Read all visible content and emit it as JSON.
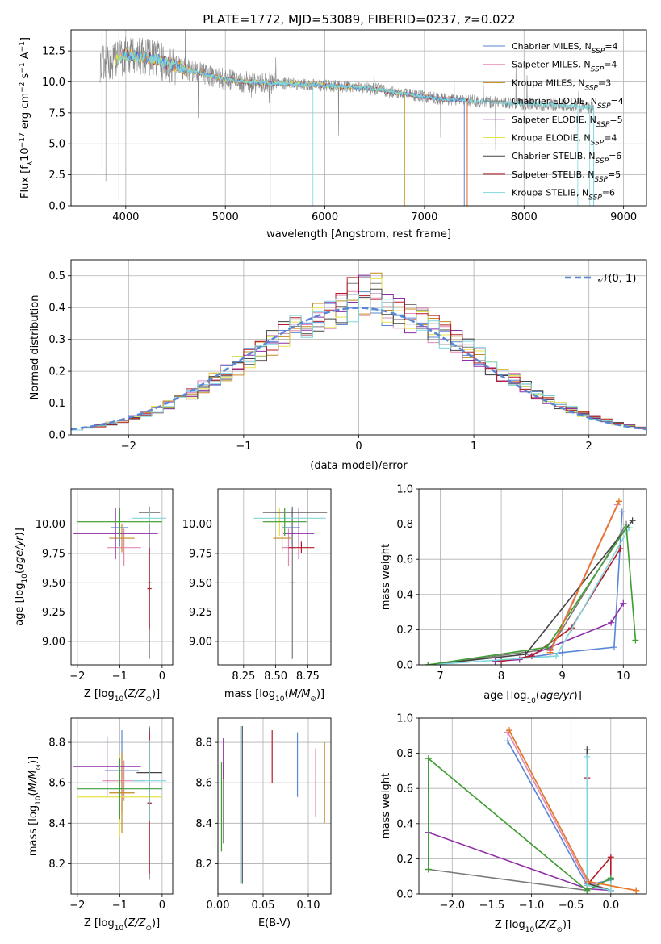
{
  "figure_title": "PLATE=1772, MJD=53089, FIBERID=0237, z=0.022",
  "colors": {
    "chabrier_miles": "#5b86d6",
    "salpeter_miles": "#e289b4",
    "kroupa_miles": "#c38a1e",
    "chabrier_elodie": "#7a7a7a",
    "salpeter_elodie": "#8e2fa8",
    "kroupa_elodie": "#e4e34a",
    "chabrier_stelib": "#444444",
    "salpeter_stelib": "#b51a26",
    "kroupa_stelib": "#7fd6dc",
    "normal": "#5b86d6",
    "green": "#3e9d3e",
    "orange": "#e8762c"
  },
  "chart_data": [
    {
      "id": "spectrum",
      "type": "line",
      "xlabel": "wavelength [Angstrom, rest frame]",
      "ylabel": "Flux [f",
      "xlim": [
        3450,
        9230
      ],
      "ylim": [
        0,
        14.2
      ],
      "xticks": [
        4000,
        5000,
        6000,
        7000,
        8000,
        9000
      ],
      "yticks": [
        0.0,
        2.5,
        5.0,
        7.5,
        10.0,
        12.5
      ],
      "ytick_labels": [
        "0.0",
        "2.5",
        "5.0",
        "7.5",
        "10.0",
        "12.5"
      ],
      "legend_position": "top-right",
      "legend": [
        {
          "name": "Chabrier MILES, N",
          "n": "=4",
          "color": "chabrier_miles"
        },
        {
          "name": "Salpeter MILES, N",
          "n": "=4",
          "color": "salpeter_miles"
        },
        {
          "name": "Kroupa MILES, N",
          "n": "=3",
          "color": "kroupa_miles"
        },
        {
          "name": "Chabrier ELODIE, N",
          "n": "=4",
          "color": "chabrier_elodie"
        },
        {
          "name": "Salpeter ELODIE, N",
          "n": "=5",
          "color": "salpeter_elodie"
        },
        {
          "name": "Kroupa ELODIE, N",
          "n": "=4",
          "color": "kroupa_elodie"
        },
        {
          "name": "Chabrier STELIB, N",
          "n": "=6",
          "color": "chabrier_stelib"
        },
        {
          "name": "Salpeter STELIB, N",
          "n": "=5",
          "color": "salpeter_stelib"
        },
        {
          "name": "Kroupa STELIB, N",
          "n": "=6",
          "color": "kroupa_stelib"
        }
      ],
      "continuum": [
        [
          3740,
          11.4
        ],
        [
          3900,
          11.8
        ],
        [
          4000,
          12.2
        ],
        [
          4200,
          12.0
        ],
        [
          4400,
          11.6
        ],
        [
          4600,
          11.0
        ],
        [
          4800,
          10.6
        ],
        [
          5000,
          10.2
        ],
        [
          5200,
          10.0
        ],
        [
          5500,
          9.9
        ],
        [
          5800,
          9.8
        ],
        [
          6000,
          9.7
        ],
        [
          6300,
          9.6
        ],
        [
          6600,
          9.3
        ],
        [
          6900,
          8.9
        ],
        [
          7200,
          8.6
        ],
        [
          7430,
          8.5
        ],
        [
          7800,
          8.3
        ],
        [
          8100,
          8.2
        ],
        [
          8400,
          8.1
        ],
        [
          8700,
          7.9
        ]
      ],
      "data_range": [
        3740,
        8700
      ],
      "model_range": [
        3950,
        7430
      ]
    },
    {
      "id": "residuals",
      "type": "line",
      "xlabel": "(data-model)/error",
      "ylabel": "Normed distribution",
      "xlim": [
        -2.5,
        2.5
      ],
      "ylim": [
        0,
        0.55
      ],
      "xticks": [
        -2,
        -1,
        0,
        1,
        2
      ],
      "xtick_labels": [
        "−2",
        "−1",
        "0",
        "1",
        "2"
      ],
      "yticks": [
        0.0,
        0.1,
        0.2,
        0.3,
        0.4,
        0.5
      ],
      "ytick_labels": [
        "0.0",
        "0.1",
        "0.2",
        "0.3",
        "0.4",
        "0.5"
      ],
      "legend": "𝒩(0, 1)",
      "legend_position": "top-right",
      "bin_width": 0.1
    },
    {
      "id": "age_vs_Z",
      "type": "scatter",
      "xlabel": "Z [log",
      "ylabel": "age  [log",
      "xlim": [
        -2.15,
        0.25
      ],
      "ylim": [
        8.8,
        10.3
      ],
      "xticks": [
        -2,
        -1,
        0
      ],
      "xtick_labels": [
        "−2",
        "−1",
        "0"
      ],
      "yticks": [
        9.0,
        9.25,
        9.5,
        9.75,
        10.0
      ],
      "ytick_labels": [
        "9.00",
        "9.25",
        "9.50",
        "9.75",
        "10.00"
      ],
      "points": [
        {
          "color": "chabrier_miles",
          "x": -1.0,
          "xe": 0.2,
          "y": 9.97,
          "ye": 0.16
        },
        {
          "color": "salpeter_miles",
          "x": -0.9,
          "xe": 0.4,
          "y": 9.8,
          "ye": 0.16
        },
        {
          "color": "kroupa_miles",
          "x": -0.95,
          "xe": 0.3,
          "y": 9.88,
          "ye": 0.12
        },
        {
          "color": "chabrier_elodie",
          "x": -0.3,
          "xe": 0.05,
          "y": 9.5,
          "ye": 0.65
        },
        {
          "color": "salpeter_elodie",
          "x": -1.1,
          "xe": 1.0,
          "y": 9.92,
          "ye": 0.22
        },
        {
          "color": "kroupa_elodie",
          "x": -1.0,
          "xe": 1.0,
          "y": 10.02,
          "ye": 0.12
        },
        {
          "color": "chabrier_stelib",
          "x": -0.3,
          "xe": 0.25,
          "y": 10.1,
          "ye": 0.0
        },
        {
          "color": "salpeter_stelib",
          "x": -0.3,
          "xe": 0.05,
          "y": 9.45,
          "ye": 0.35
        },
        {
          "color": "kroupa_stelib",
          "x": -0.3,
          "xe": 0.4,
          "y": 10.05,
          "ye": 0.05
        },
        {
          "color": "green",
          "x": -1.0,
          "xe": 1.0,
          "y": 10.02,
          "ye": 0.12
        }
      ]
    },
    {
      "id": "age_vs_mass",
      "type": "scatter",
      "xlabel": "mass [log",
      "ylabel": "",
      "xlim": [
        8.05,
        8.93
      ],
      "ylim": [
        8.8,
        10.3
      ],
      "xticks": [
        8.25,
        8.5,
        8.75
      ],
      "xtick_labels": [
        "8.25",
        "8.50",
        "8.75"
      ],
      "yticks": [
        9.0,
        9.25,
        9.5,
        9.75,
        10.0
      ],
      "ytick_labels": [
        "9.00",
        "9.25",
        "9.50",
        "9.75",
        "10.00"
      ],
      "points": [
        {
          "color": "chabrier_miles",
          "x": 8.62,
          "xe": 0.07,
          "y": 9.97,
          "ye": 0.16
        },
        {
          "color": "salpeter_miles",
          "x": 8.6,
          "xe": 0.05,
          "y": 9.8,
          "ye": 0.16
        },
        {
          "color": "kroupa_miles",
          "x": 8.55,
          "xe": 0.07,
          "y": 9.88,
          "ye": 0.12
        },
        {
          "color": "chabrier_elodie",
          "x": 8.63,
          "xe": 0.02,
          "y": 9.5,
          "ye": 0.65
        },
        {
          "color": "salpeter_elodie",
          "x": 8.68,
          "xe": 0.12,
          "y": 9.92,
          "ye": 0.22
        },
        {
          "color": "kroupa_elodie",
          "x": 8.53,
          "xe": 0.12,
          "y": 10.02,
          "ye": 0.12
        },
        {
          "color": "chabrier_stelib",
          "x": 8.65,
          "xe": 0.25,
          "y": 10.1,
          "ye": 0.0
        },
        {
          "color": "salpeter_stelib",
          "x": 8.7,
          "xe": 0.1,
          "y": 9.8,
          "ye": 0.05
        },
        {
          "color": "kroupa_stelib",
          "x": 8.61,
          "xe": 0.28,
          "y": 10.05,
          "ye": 0.0
        },
        {
          "color": "green",
          "x": 8.57,
          "xe": 0.17,
          "y": 10.02,
          "ye": 0.12
        }
      ]
    },
    {
      "id": "weight_vs_age",
      "type": "line",
      "xlabel": "age  [log",
      "ylabel": "mass weight",
      "xlim": [
        6.65,
        10.38
      ],
      "ylim": [
        0,
        1.0
      ],
      "xticks": [
        7,
        8,
        9,
        10
      ],
      "xtick_labels": [
        "7",
        "8",
        "9",
        "10"
      ],
      "yticks": [
        0,
        0.2,
        0.4,
        0.6,
        0.8,
        1.0
      ],
      "ytick_labels": [
        "0.0",
        "0.2",
        "0.4",
        "0.6",
        "0.8",
        "1.0"
      ],
      "series": [
        {
          "color": "chabrier_miles",
          "pts": [
            [
              8.0,
              0.02
            ],
            [
              9.0,
              0.07
            ],
            [
              9.85,
              0.1
            ],
            [
              9.98,
              0.87
            ]
          ]
        },
        {
          "color": "salpeter_miles",
          "pts": [
            [
              8.8,
              0.08
            ],
            [
              9.9,
              0.91
            ]
          ]
        },
        {
          "color": "kroupa_miles",
          "pts": [
            [
              8.8,
              0.07
            ],
            [
              9.93,
              0.93
            ]
          ]
        },
        {
          "color": "chabrier_elodie",
          "pts": [
            [
              6.8,
              0.0
            ],
            [
              8.8,
              0.09
            ],
            [
              10.05,
              0.8
            ]
          ]
        },
        {
          "color": "salpeter_elodie",
          "pts": [
            [
              7.9,
              0.02
            ],
            [
              8.3,
              0.03
            ],
            [
              9.8,
              0.24
            ],
            [
              10.0,
              0.35
            ]
          ]
        },
        {
          "color": "kroupa_elodie",
          "pts": [
            [
              6.8,
              0.0
            ],
            [
              8.75,
              0.1
            ],
            [
              10.05,
              0.78
            ],
            [
              10.2,
              0.14
            ]
          ]
        },
        {
          "color": "chabrier_stelib",
          "pts": [
            [
              6.8,
              0.0
            ],
            [
              8.4,
              0.06
            ],
            [
              10.15,
              0.82
            ]
          ]
        },
        {
          "color": "salpeter_stelib",
          "pts": [
            [
              8.0,
              0.02
            ],
            [
              8.5,
              0.05
            ],
            [
              9.15,
              0.21
            ],
            [
              9.95,
              0.66
            ]
          ]
        },
        {
          "color": "kroupa_stelib",
          "pts": [
            [
              6.8,
              0.0
            ],
            [
              8.9,
              0.05
            ],
            [
              10.1,
              0.78
            ]
          ]
        },
        {
          "color": "green",
          "pts": [
            [
              6.8,
              0.0
            ],
            [
              8.75,
              0.1
            ],
            [
              10.05,
              0.78
            ],
            [
              10.2,
              0.14
            ]
          ]
        },
        {
          "color": "orange",
          "pts": [
            [
              8.8,
              0.07
            ],
            [
              9.93,
              0.93
            ]
          ]
        }
      ]
    },
    {
      "id": "mass_vs_Z",
      "type": "scatter",
      "xlabel": "Z [log",
      "ylabel": "mass [log",
      "xlim": [
        -2.15,
        0.25
      ],
      "ylim": [
        8.05,
        8.92
      ],
      "xticks": [
        -2,
        -1,
        0
      ],
      "xtick_labels": [
        "−2",
        "−1",
        "0"
      ],
      "yticks": [
        8.2,
        8.4,
        8.6,
        8.8
      ],
      "ytick_labels": [
        "8.2",
        "8.4",
        "8.6",
        "8.8"
      ],
      "points": [
        {
          "color": "chabrier_miles",
          "x": -0.95,
          "xe": 0.4,
          "y": 8.66,
          "ye": 0.2
        },
        {
          "color": "salpeter_miles",
          "x": -0.9,
          "xe": 0.5,
          "y": 8.61,
          "ye": 0.1
        },
        {
          "color": "kroupa_miles",
          "x": -0.95,
          "xe": 0.3,
          "y": 8.55,
          "ye": 0.2
        },
        {
          "color": "chabrier_elodie",
          "x": -0.3,
          "xe": 0.05,
          "y": 8.5,
          "ye": 0.38
        },
        {
          "color": "salpeter_elodie",
          "x": -1.3,
          "xe": 0.8,
          "y": 8.68,
          "ye": 0.15
        },
        {
          "color": "kroupa_elodie",
          "x": -1.0,
          "xe": 1.0,
          "y": 8.53,
          "ye": 0.2
        },
        {
          "color": "chabrier_stelib",
          "x": -0.3,
          "xe": 0.3,
          "y": 8.65,
          "ye": 0.22
        },
        {
          "color": "salpeter_stelib",
          "x": -0.3,
          "xe": 0.05,
          "y": 8.5,
          "ye": 0.35
        },
        {
          "color": "kroupa_stelib",
          "x": -0.3,
          "xe": 0.4,
          "y": 8.61,
          "ye": 0.2
        },
        {
          "color": "green",
          "x": -1.0,
          "xe": 1.0,
          "y": 8.57,
          "ye": 0.15
        }
      ]
    },
    {
      "id": "mass_vs_ebv",
      "type": "scatter",
      "xlabel": "E(B-V)",
      "ylabel": "",
      "xlim": [
        0.0,
        0.125
      ],
      "ylim": [
        8.05,
        8.92
      ],
      "xticks": [
        0.0,
        0.05,
        0.1
      ],
      "xtick_labels": [
        "0.00",
        "0.05",
        "0.10"
      ],
      "yticks": [
        8.2,
        8.4,
        8.6,
        8.8
      ],
      "ytick_labels": [
        "8.2",
        "8.4",
        "8.6",
        "8.8"
      ],
      "points": [
        {
          "color": "chabrier_miles",
          "x": 0.088,
          "y": 8.69,
          "ye": 0.16
        },
        {
          "color": "salpeter_miles",
          "x": 0.108,
          "y": 8.6,
          "ye": 0.17
        },
        {
          "color": "kroupa_miles",
          "x": 0.118,
          "y": 8.6,
          "ye": 0.2
        },
        {
          "color": "chabrier_elodie",
          "x": 0.006,
          "y": 8.5,
          "ye": 0.2
        },
        {
          "color": "salpeter_elodie",
          "x": 0.006,
          "y": 8.72,
          "ye": 0.1
        },
        {
          "color": "kroupa_elodie",
          "x": 0.004,
          "y": 8.48,
          "ye": 0.22
        },
        {
          "color": "chabrier_stelib",
          "x": 0.027,
          "y": 8.49,
          "ye": 0.39
        },
        {
          "color": "salpeter_stelib",
          "x": 0.06,
          "y": 8.73,
          "ye": 0.13
        },
        {
          "color": "kroupa_stelib",
          "x": 0.025,
          "y": 8.49,
          "ye": 0.39
        },
        {
          "color": "green",
          "x": 0.004,
          "y": 8.48,
          "ye": 0.22
        }
      ]
    },
    {
      "id": "weight_vs_Z",
      "type": "line",
      "xlabel": "Z [log",
      "ylabel": "mass weight",
      "xlim": [
        -2.42,
        0.45
      ],
      "ylim": [
        0,
        1.0
      ],
      "xticks": [
        -2.0,
        -1.5,
        -1.0,
        -0.5,
        0.0
      ],
      "xtick_labels": [
        "−2.0",
        "−1.5",
        "−1.0",
        "−0.5",
        "0.0"
      ],
      "yticks": [
        0,
        0.2,
        0.4,
        0.6,
        0.8,
        1.0
      ],
      "ytick_labels": [
        "0.0",
        "0.2",
        "0.4",
        "0.6",
        "0.8",
        "1.0"
      ],
      "series": [
        {
          "color": "chabrier_miles",
          "pts": [
            [
              -1.3,
              0.87
            ],
            [
              -0.3,
              0.05
            ],
            [
              0.0,
              0.08
            ]
          ]
        },
        {
          "color": "salpeter_miles",
          "pts": [
            [
              -1.3,
              0.92
            ],
            [
              -0.3,
              0.07
            ],
            [
              0.0,
              0.02
            ]
          ]
        },
        {
          "color": "kroupa_miles",
          "pts": [
            [
              -1.28,
              0.93
            ],
            [
              -0.28,
              0.07
            ],
            [
              0.32,
              0.02
            ]
          ]
        },
        {
          "color": "chabrier_elodie",
          "pts": [
            [
              -2.3,
              0.14
            ],
            [
              -0.3,
              0.02
            ],
            [
              0.0,
              0.09
            ]
          ]
        },
        {
          "color": "salpeter_elodie",
          "pts": [
            [
              -2.3,
              0.35
            ],
            [
              -0.3,
              0.03
            ],
            [
              0.0,
              0.02
            ]
          ]
        },
        {
          "color": "kroupa_elodie",
          "pts": [
            [
              -2.3,
              0.14
            ],
            [
              -2.3,
              0.77
            ],
            [
              -0.3,
              0.02
            ],
            [
              0.0,
              0.09
            ]
          ]
        },
        {
          "color": "chabrier_stelib",
          "pts": [
            [
              -0.3,
              0.82
            ],
            [
              -0.3,
              0.06
            ],
            [
              0.0,
              0.02
            ]
          ]
        },
        {
          "color": "salpeter_stelib",
          "pts": [
            [
              -0.3,
              0.66
            ],
            [
              -0.3,
              0.05
            ],
            [
              0.0,
              0.21
            ],
            [
              0.0,
              0.02
            ]
          ]
        },
        {
          "color": "kroupa_stelib",
          "pts": [
            [
              -0.3,
              0.78
            ],
            [
              -0.3,
              0.05
            ],
            [
              0.0,
              0.02
            ],
            [
              0.0,
              0.09
            ]
          ]
        },
        {
          "color": "green",
          "pts": [
            [
              -2.3,
              0.14
            ],
            [
              -2.3,
              0.77
            ],
            [
              -0.3,
              0.02
            ],
            [
              0.0,
              0.09
            ]
          ]
        },
        {
          "color": "orange",
          "pts": [
            [
              -1.28,
              0.93
            ],
            [
              -0.28,
              0.07
            ],
            [
              0.32,
              0.02
            ]
          ]
        }
      ]
    }
  ]
}
